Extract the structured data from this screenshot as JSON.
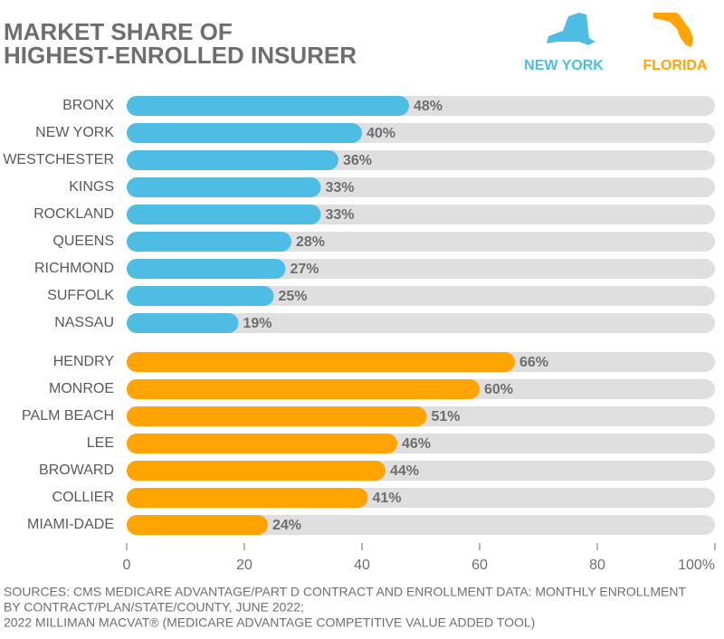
{
  "chart_data": {
    "type": "bar",
    "orientation": "horizontal",
    "title": [
      "MARKET SHARE OF",
      "HIGHEST-ENROLLED INSURER"
    ],
    "legend": "top-right",
    "series": [
      {
        "name": "NEW YORK",
        "color": "#4dbde4",
        "categories": [
          "BRONX",
          "NEW YORK",
          "WESTCHESTER",
          "KINGS",
          "ROCKLAND",
          "QUEENS",
          "RICHMOND",
          "SUFFOLK",
          "NASSAU"
        ],
        "values": [
          48,
          40,
          36,
          33,
          33,
          28,
          27,
          25,
          19
        ],
        "value_labels": [
          "48%",
          "40%",
          "36%",
          "33%",
          "33%",
          "28%",
          "27%",
          "25%",
          "19%"
        ]
      },
      {
        "name": "FLORIDA",
        "color": "#ffa400",
        "categories": [
          "HENDRY",
          "MONROE",
          "PALM BEACH",
          "LEE",
          "BROWARD",
          "COLLIER",
          "MIAMI-DADE"
        ],
        "values": [
          66,
          60,
          51,
          46,
          44,
          41,
          24
        ],
        "value_labels": [
          "66%",
          "60%",
          "51%",
          "46%",
          "44%",
          "41%",
          "24%"
        ]
      }
    ],
    "track_color": "#dfdfdf",
    "xlim": [
      0,
      100
    ],
    "xticks": [
      0,
      20,
      40,
      60,
      80,
      {
        "value": 100,
        "label": "100%"
      }
    ],
    "source": [
      "SOURCES: CMS MEDICARE ADVANTAGE/PART D CONTRACT AND ENROLLMENT DATA: MONTHLY ENROLLMENT",
      "BY CONTRACT/PLAN/STATE/COUNTY, JUNE 2022;",
      "2022 MILLIMAN MACVAT® (MEDICARE ADVANTAGE COMPETITIVE VALUE ADDED TOOL)"
    ]
  }
}
